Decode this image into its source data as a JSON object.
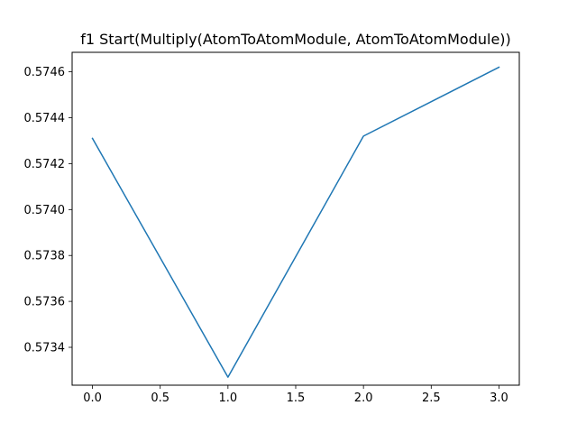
{
  "chart_data": {
    "type": "line",
    "title": "f1 Start(Multiply(AtomToAtomModule, AtomToAtomModule))",
    "xlabel": "",
    "ylabel": "",
    "x": [
      0,
      1,
      2,
      3
    ],
    "series": [
      {
        "values": [
          0.57431,
          0.57327,
          0.57432,
          0.57462
        ],
        "color": "#1f77b4"
      }
    ],
    "xlim": [
      -0.15,
      3.15
    ],
    "ylim": [
      0.573235,
      0.574685
    ],
    "xticks": [
      0.0,
      0.5,
      1.0,
      1.5,
      2.0,
      2.5,
      3.0
    ],
    "xtick_labels": [
      "0.0",
      "0.5",
      "1.0",
      "1.5",
      "2.0",
      "2.5",
      "3.0"
    ],
    "yticks": [
      0.5734,
      0.5736,
      0.5738,
      0.574,
      0.5742,
      0.5744,
      0.5746
    ],
    "ytick_labels": [
      "0.5734",
      "0.5736",
      "0.5738",
      "0.5740",
      "0.5742",
      "0.5744",
      "0.5746"
    ],
    "grid": false,
    "legend": "none"
  }
}
